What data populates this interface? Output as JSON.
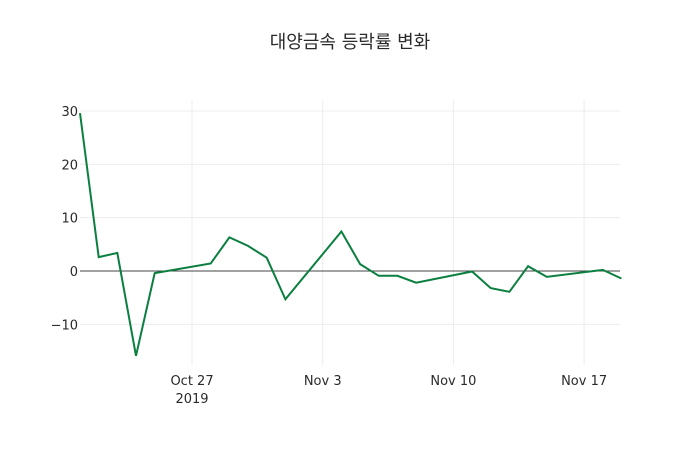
{
  "chart_data": {
    "type": "line",
    "title": "대양금속 등락률 변화",
    "xlabel": "",
    "ylabel": "",
    "x": [
      "2019-10-21",
      "2019-10-22",
      "2019-10-23",
      "2019-10-24",
      "2019-10-25",
      "2019-10-28",
      "2019-10-29",
      "2019-10-30",
      "2019-10-31",
      "2019-11-01",
      "2019-11-04",
      "2019-11-05",
      "2019-11-06",
      "2019-11-07",
      "2019-11-08",
      "2019-11-11",
      "2019-11-12",
      "2019-11-13",
      "2019-11-14",
      "2019-11-15",
      "2019-11-18",
      "2019-11-19"
    ],
    "series": [
      {
        "name": "등락률",
        "color": "#0b7f3f",
        "values": [
          29.6,
          2.6,
          3.4,
          -15.9,
          -0.4,
          1.4,
          6.3,
          4.7,
          2.5,
          -5.3,
          7.4,
          1.3,
          -0.9,
          -0.9,
          -2.2,
          -0.1,
          -3.2,
          -3.9,
          0.9,
          -1.1,
          0.2,
          -1.4
        ]
      }
    ],
    "xticks": [
      {
        "date": "2019-10-27",
        "label": "Oct 27",
        "sublabel": "2019"
      },
      {
        "date": "2019-11-03",
        "label": "Nov 3",
        "sublabel": ""
      },
      {
        "date": "2019-11-10",
        "label": "Nov 10",
        "sublabel": ""
      },
      {
        "date": "2019-11-17",
        "label": "Nov 17",
        "sublabel": ""
      }
    ],
    "yticks": [
      30,
      20,
      10,
      0,
      -10
    ],
    "ytick_labels": [
      "30",
      "20",
      "10",
      "0",
      "−10"
    ],
    "ylim": [
      -17.5,
      32
    ],
    "xlim": [
      "2019-10-21",
      "2019-11-19"
    ],
    "grid": true,
    "zeroline": true,
    "legend": "none"
  }
}
